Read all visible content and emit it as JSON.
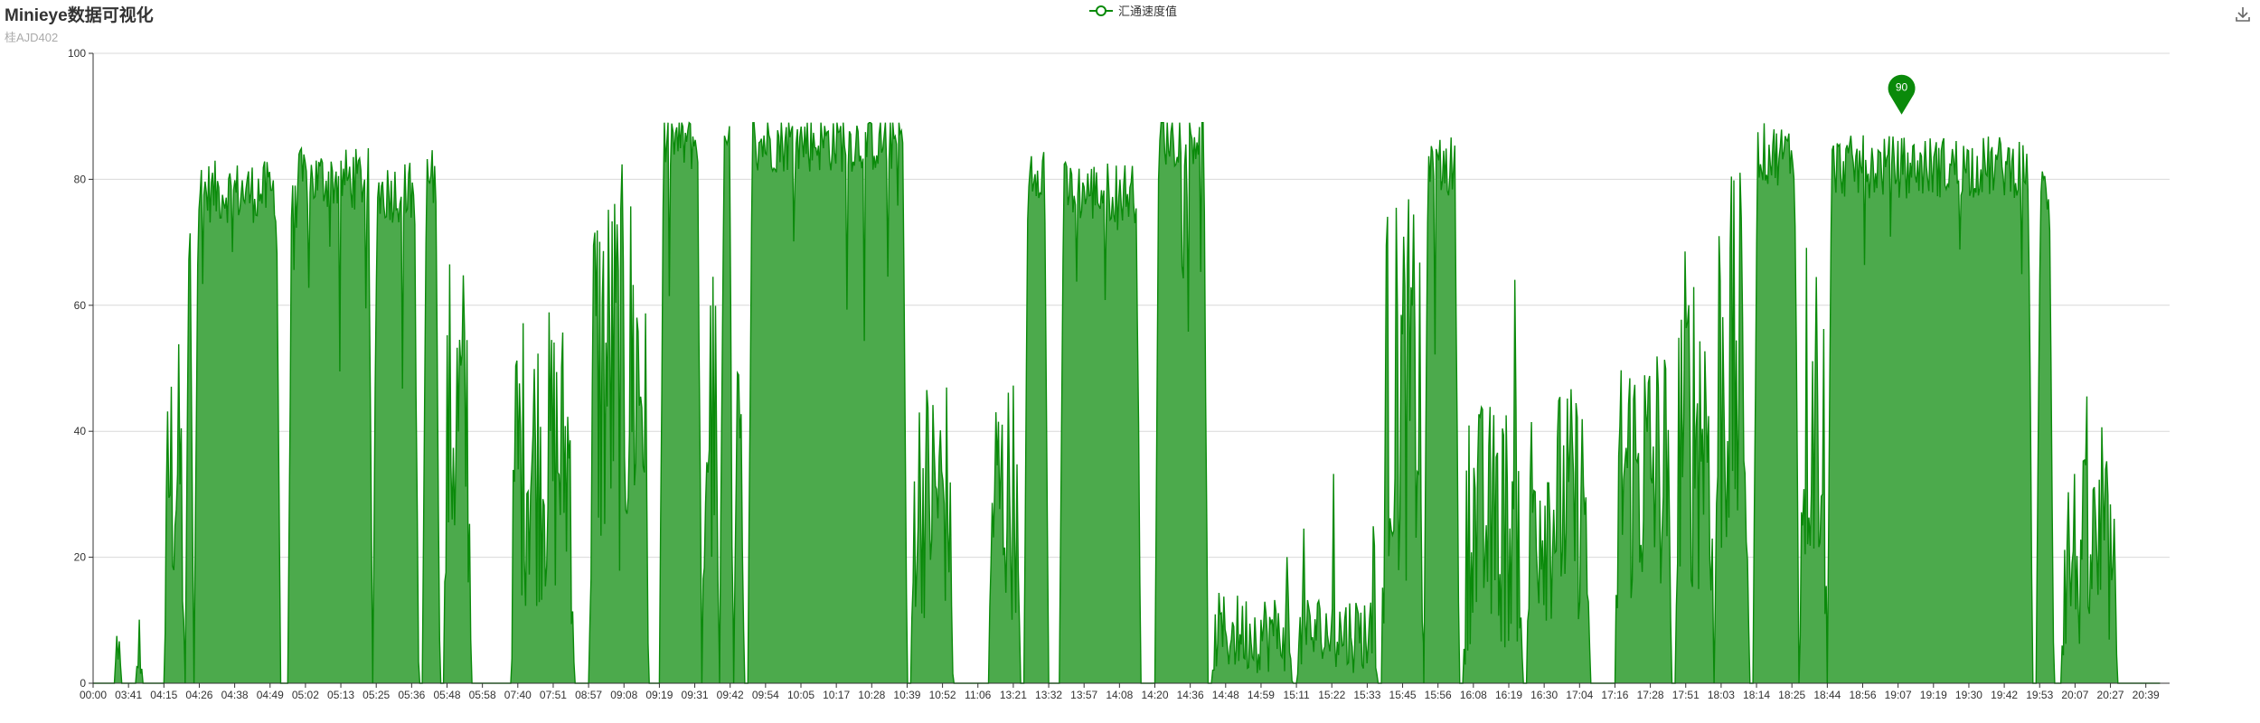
{
  "title": "Minieye数据可视化",
  "subtitle": "桂AJD402",
  "toolbox": {
    "download_icon": "download-icon"
  },
  "colors": {
    "line": "#0a8a0a",
    "area": "#4caa4c",
    "grid": "#d9d9d9",
    "axis": "#333333",
    "marker": "#0a8a0a"
  },
  "chart_data": {
    "type": "area",
    "title": "Minieye数据可视化",
    "subtitle": "桂AJD402",
    "xlabel": "",
    "ylabel": "",
    "ylim": [
      0,
      100
    ],
    "yticks": [
      0,
      20,
      40,
      60,
      80,
      100
    ],
    "grid": true,
    "legend": "top-center",
    "x_tick_labels": [
      "00:00",
      "03:41",
      "04:15",
      "04:26",
      "04:38",
      "04:49",
      "05:02",
      "05:13",
      "05:25",
      "05:36",
      "05:48",
      "05:58",
      "07:40",
      "07:51",
      "08:57",
      "09:08",
      "09:19",
      "09:31",
      "09:42",
      "09:54",
      "10:05",
      "10:17",
      "10:28",
      "10:39",
      "10:52",
      "11:06",
      "13:21",
      "13:32",
      "13:57",
      "14:08",
      "14:20",
      "14:36",
      "14:48",
      "14:59",
      "15:11",
      "15:22",
      "15:33",
      "15:45",
      "15:56",
      "16:08",
      "16:19",
      "16:30",
      "17:04",
      "17:16",
      "17:28",
      "17:51",
      "18:03",
      "18:14",
      "18:25",
      "18:44",
      "18:56",
      "19:07",
      "19:19",
      "19:30",
      "19:42",
      "19:53",
      "20:07",
      "20:27",
      "20:39"
    ],
    "series": [
      {
        "name": "汇通速度值",
        "color": "#0a8a0a",
        "segments": [
          {
            "start": 0.6,
            "end": 0.8,
            "level": 10
          },
          {
            "start": 1.2,
            "end": 1.4,
            "level": 8
          },
          {
            "start": 2.0,
            "end": 2.6,
            "level": 44
          },
          {
            "start": 2.6,
            "end": 2.85,
            "level": 76
          },
          {
            "start": 2.85,
            "end": 5.3,
            "level": 78
          },
          {
            "start": 5.5,
            "end": 7.9,
            "level": 80
          },
          {
            "start": 7.9,
            "end": 9.2,
            "level": 78
          },
          {
            "start": 9.3,
            "end": 9.8,
            "level": 80
          },
          {
            "start": 9.9,
            "end": 10.7,
            "level": 55
          },
          {
            "start": 11.8,
            "end": 13.6,
            "level": 48
          },
          {
            "start": 14.0,
            "end": 15.7,
            "level": 66
          },
          {
            "start": 16.0,
            "end": 17.2,
            "level": 86
          },
          {
            "start": 17.2,
            "end": 17.7,
            "level": 55
          },
          {
            "start": 17.7,
            "end": 18.1,
            "level": 84
          },
          {
            "start": 18.1,
            "end": 18.4,
            "level": 50
          },
          {
            "start": 18.5,
            "end": 23.0,
            "level": 86
          },
          {
            "start": 23.1,
            "end": 24.3,
            "level": 40
          },
          {
            "start": 25.3,
            "end": 26.2,
            "level": 40
          },
          {
            "start": 26.3,
            "end": 27.0,
            "level": 82
          },
          {
            "start": 27.3,
            "end": 29.6,
            "level": 78
          },
          {
            "start": 30.0,
            "end": 31.5,
            "level": 87
          },
          {
            "start": 31.6,
            "end": 33.9,
            "level": 8
          },
          {
            "start": 34.0,
            "end": 36.3,
            "level": 8
          },
          {
            "start": 36.4,
            "end": 37.6,
            "level": 62
          },
          {
            "start": 37.6,
            "end": 38.6,
            "level": 82
          },
          {
            "start": 38.7,
            "end": 40.4,
            "level": 25
          },
          {
            "start": 40.5,
            "end": 42.3,
            "level": 38
          },
          {
            "start": 43.0,
            "end": 44.6,
            "level": 45
          },
          {
            "start": 44.7,
            "end": 45.8,
            "level": 56
          },
          {
            "start": 45.8,
            "end": 46.8,
            "level": 65
          },
          {
            "start": 46.9,
            "end": 48.2,
            "level": 84
          },
          {
            "start": 48.2,
            "end": 49.0,
            "level": 60
          },
          {
            "start": 49.0,
            "end": 54.8,
            "level": 82
          },
          {
            "start": 54.9,
            "end": 55.4,
            "level": 78
          },
          {
            "start": 55.6,
            "end": 57.2,
            "level": 20
          }
        ]
      }
    ],
    "max_marker": {
      "x_tick": 51.1,
      "value": 90,
      "label": "90"
    }
  }
}
